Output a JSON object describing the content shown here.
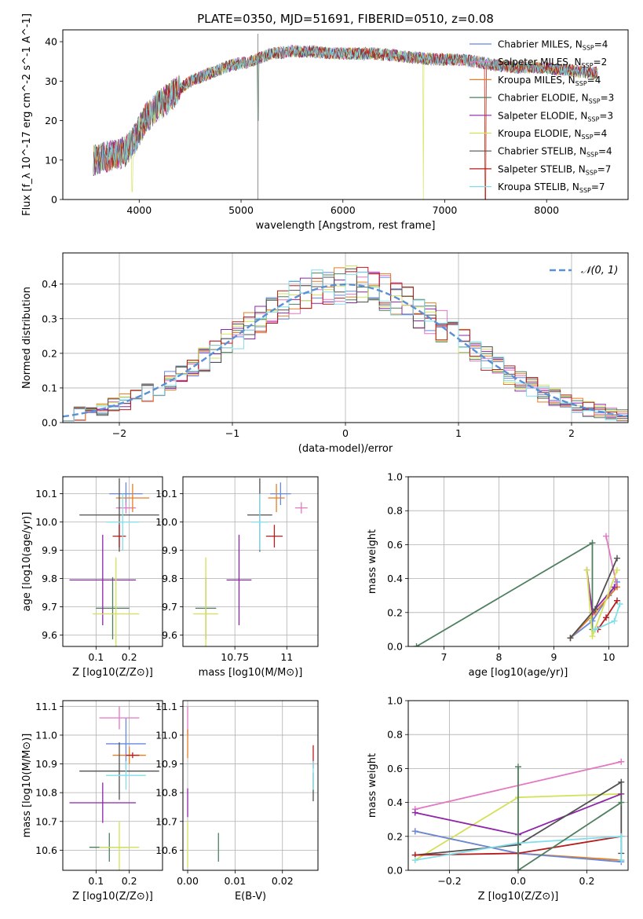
{
  "series_styles": [
    {
      "name": "Chabrier MILES",
      "nssp": "4",
      "color": "#6688dd"
    },
    {
      "name": "Salpeter MILES",
      "nssp": "2",
      "color": "#e377c2"
    },
    {
      "name": "Kroupa MILES",
      "nssp": "4",
      "color": "#e67e22"
    },
    {
      "name": "Chabrier ELODIE",
      "nssp": "3",
      "color": "#4f7f5f"
    },
    {
      "name": "Salpeter ELODIE",
      "nssp": "3",
      "color": "#8e24aa"
    },
    {
      "name": "Kroupa ELODIE",
      "nssp": "4",
      "color": "#d4e157"
    },
    {
      "name": "Chabrier STELIB",
      "nssp": "4",
      "color": "#505050"
    },
    {
      "name": "Salpeter STELIB",
      "nssp": "7",
      "color": "#b71c1c"
    },
    {
      "name": "Kroupa STELIB",
      "nssp": "7",
      "color": "#80deea"
    }
  ],
  "chart_data": [
    {
      "id": "spectrum",
      "type": "line",
      "title": "PLATE=0350, MJD=51691, FIBERID=0510, z=0.08",
      "xlabel": "wavelength [Angstrom, rest frame]",
      "ylabel": "Flux [f_λ 10^-17 erg cm^-2 s^-1 A^-1]",
      "xlim": [
        3250,
        8800
      ],
      "ylim": [
        0,
        43
      ],
      "xticks": [
        4000,
        5000,
        6000,
        7000,
        8000
      ],
      "yticks": [
        0,
        10,
        20,
        30,
        40
      ],
      "grid": false,
      "legend": "right",
      "continuum": [
        [
          3550,
          10
        ],
        [
          3700,
          11
        ],
        [
          3850,
          12
        ],
        [
          3950,
          15
        ],
        [
          4050,
          20
        ],
        [
          4150,
          23
        ],
        [
          4250,
          25
        ],
        [
          4350,
          27
        ],
        [
          4500,
          30
        ],
        [
          4700,
          32
        ],
        [
          4900,
          34
        ],
        [
          5100,
          35
        ],
        [
          5300,
          37
        ],
        [
          5500,
          37.5
        ],
        [
          5700,
          37.5
        ],
        [
          5900,
          37
        ],
        [
          6100,
          37
        ],
        [
          6300,
          37
        ],
        [
          6500,
          36.5
        ],
        [
          6700,
          36
        ],
        [
          6900,
          35.5
        ],
        [
          7100,
          35.5
        ],
        [
          7300,
          35
        ],
        [
          7500,
          34
        ],
        [
          7700,
          33.5
        ],
        [
          7900,
          33.5
        ],
        [
          8100,
          33
        ],
        [
          8300,
          32.5
        ],
        [
          8500,
          32
        ]
      ],
      "dips": [
        [
          3933,
          2
        ],
        [
          5165,
          20
        ],
        [
          5890,
          26
        ],
        [
          6790,
          0
        ],
        [
          7400,
          0
        ]
      ]
    },
    {
      "id": "residuals",
      "type": "step",
      "xlabel": "(data-model)/error",
      "ylabel": "Normed distribution",
      "xlim": [
        -2.5,
        2.5
      ],
      "ylim": [
        0,
        0.49
      ],
      "xticks": [
        -2,
        -1,
        0,
        1,
        2
      ],
      "yticks": [
        0,
        0.1,
        0.2,
        0.3,
        0.4
      ],
      "grid": true,
      "legend": "top-right",
      "reference_label": "𝒩(0, 1)"
    },
    {
      "id": "age_vs_Z",
      "type": "errorbar",
      "xlabel": "Z [log10(Z/Z⊙)]",
      "ylabel": "age  [log10(age/yr)]",
      "xlim": [
        0,
        0.3
      ],
      "ylim": [
        9.56,
        10.16
      ],
      "xticks": [
        0.1,
        0.2
      ],
      "yticks": [
        9.6,
        9.7,
        9.8,
        9.9,
        10.0,
        10.1
      ],
      "points": [
        {
          "s": 0,
          "x": 0.19,
          "xe": 0.05,
          "y": 10.1,
          "ye": 0.04
        },
        {
          "s": 1,
          "x": 0.19,
          "xe": 0.03,
          "y": 10.05,
          "ye": 0.02
        },
        {
          "s": 2,
          "x": 0.21,
          "xe": 0.05,
          "y": 10.085,
          "ye": 0.05
        },
        {
          "s": 3,
          "x": 0.15,
          "xe": 0.05,
          "y": 9.695,
          "ye": 0.11
        },
        {
          "s": 4,
          "x": 0.12,
          "xe": 0.1,
          "y": 9.795,
          "ye": 0.16
        },
        {
          "s": 5,
          "x": 0.16,
          "xe": 0.07,
          "y": 9.675,
          "ye": 0.2
        },
        {
          "s": 6,
          "x": 0.17,
          "xe": 0.12,
          "y": 10.025,
          "ye": 0.13
        },
        {
          "s": 7,
          "x": 0.17,
          "xe": 0.02,
          "y": 9.95,
          "ye": 0.04
        },
        {
          "s": 8,
          "x": 0.18,
          "xe": 0.05,
          "y": 10.0,
          "ye": 0.1
        }
      ]
    },
    {
      "id": "age_vs_mass",
      "type": "errorbar",
      "xlabel": "mass [log10(M/M⊙)]",
      "ylabel": "",
      "xlim": [
        10.5,
        11.15
      ],
      "ylim": [
        9.56,
        10.16
      ],
      "xticks": [
        10.75,
        11.0
      ],
      "yticks": [
        9.6,
        9.7,
        9.8,
        9.9,
        10.0,
        10.1
      ],
      "points": [
        {
          "s": 0,
          "x": 10.97,
          "xe": 0.05,
          "y": 10.1,
          "ye": 0.04
        },
        {
          "s": 1,
          "x": 11.07,
          "xe": 0.03,
          "y": 10.05,
          "ye": 0.02
        },
        {
          "s": 2,
          "x": 10.95,
          "xe": 0.04,
          "y": 10.085,
          "ye": 0.05
        },
        {
          "s": 3,
          "x": 10.61,
          "xe": 0.05,
          "y": 9.695,
          "ye": 0.11
        },
        {
          "s": 4,
          "x": 10.77,
          "xe": 0.06,
          "y": 9.795,
          "ye": 0.16
        },
        {
          "s": 5,
          "x": 10.61,
          "xe": 0.06,
          "y": 9.675,
          "ye": 0.2
        },
        {
          "s": 6,
          "x": 10.87,
          "xe": 0.06,
          "y": 10.025,
          "ye": 0.13
        },
        {
          "s": 7,
          "x": 10.94,
          "xe": 0.04,
          "y": 9.95,
          "ye": 0.04
        },
        {
          "s": 8,
          "x": 10.87,
          "xe": 0.04,
          "y": 10.0,
          "ye": 0.1
        }
      ]
    },
    {
      "id": "weight_vs_age",
      "type": "line",
      "xlabel": "age  [log10(age/yr)]",
      "ylabel": "mass weight",
      "xlim": [
        6.35,
        10.35
      ],
      "ylim": [
        0,
        1
      ],
      "xticks": [
        7,
        8,
        9,
        10
      ],
      "yticks": [
        0,
        0.2,
        0.4,
        0.6,
        0.8,
        1.0
      ],
      "grid": true,
      "lines": [
        {
          "s": 3,
          "pts": [
            [
              6.5,
              0
            ],
            [
              9.7,
              0.61
            ],
            [
              9.7,
              0.1
            ]
          ]
        },
        {
          "s": 0,
          "pts": [
            [
              9.3,
              0.05
            ],
            [
              9.7,
              0.15
            ],
            [
              10.0,
              0.3
            ],
            [
              10.15,
              0.38
            ]
          ]
        },
        {
          "s": 1,
          "pts": [
            [
              9.95,
              0.65
            ],
            [
              10.15,
              0.35
            ]
          ]
        },
        {
          "s": 2,
          "pts": [
            [
              9.3,
              0.05
            ],
            [
              9.75,
              0.2
            ],
            [
              10.15,
              0.35
            ]
          ]
        },
        {
          "s": 4,
          "pts": [
            [
              9.6,
              0.45
            ],
            [
              9.7,
              0.2
            ],
            [
              10.1,
              0.35
            ]
          ]
        },
        {
          "s": 5,
          "pts": [
            [
              9.6,
              0.45
            ],
            [
              9.7,
              0.06
            ],
            [
              10.15,
              0.45
            ]
          ]
        },
        {
          "s": 6,
          "pts": [
            [
              9.3,
              0.05
            ],
            [
              9.75,
              0.22
            ],
            [
              10.15,
              0.52
            ]
          ]
        },
        {
          "s": 7,
          "pts": [
            [
              9.8,
              0.1
            ],
            [
              9.95,
              0.17
            ],
            [
              10.15,
              0.27
            ]
          ]
        },
        {
          "s": 8,
          "pts": [
            [
              9.75,
              0.1
            ],
            [
              10.1,
              0.15
            ],
            [
              10.2,
              0.25
            ]
          ]
        }
      ]
    },
    {
      "id": "mass_vs_Z",
      "type": "errorbar",
      "xlabel": "Z [log10(Z/Z⊙)]",
      "ylabel": "mass [log10(M/M⊙)]",
      "xlim": [
        0,
        0.3
      ],
      "ylim": [
        10.53,
        11.12
      ],
      "xticks": [
        0.1,
        0.2
      ],
      "yticks": [
        10.6,
        10.7,
        10.8,
        10.9,
        11.0,
        11.1
      ],
      "points": [
        {
          "s": 0,
          "x": 0.19,
          "xe": 0.06,
          "y": 10.97,
          "ye": 0.09
        },
        {
          "s": 1,
          "x": 0.17,
          "xe": 0.06,
          "y": 11.06,
          "ye": 0.04
        },
        {
          "s": 2,
          "x": 0.2,
          "xe": 0.05,
          "y": 10.93,
          "ye": 0.03
        },
        {
          "s": 3,
          "x": 0.14,
          "xe": 0.06,
          "y": 10.61,
          "ye": 0.05
        },
        {
          "s": 4,
          "x": 0.12,
          "xe": 0.1,
          "y": 10.765,
          "ye": 0.07
        },
        {
          "s": 5,
          "x": 0.17,
          "xe": 0.06,
          "y": 10.61,
          "ye": 0.09
        },
        {
          "s": 6,
          "x": 0.17,
          "xe": 0.12,
          "y": 10.875,
          "ye": 0.1
        },
        {
          "s": 7,
          "x": 0.21,
          "xe": 0.02,
          "y": 10.93,
          "ye": 0.01
        },
        {
          "s": 8,
          "x": 0.19,
          "xe": 0.06,
          "y": 10.86,
          "ye": 0.05
        }
      ]
    },
    {
      "id": "mass_vs_ebv",
      "type": "errorbar",
      "xlabel": "E(B-V)",
      "ylabel": "",
      "xlim": [
        -0.001,
        0.0275
      ],
      "ylim": [
        10.53,
        11.12
      ],
      "xticks": [
        0.0,
        0.01,
        0.02
      ],
      "yticks": [
        10.6,
        10.7,
        10.8,
        10.9,
        11.0,
        11.1
      ],
      "points": [
        {
          "s": 1,
          "x": 0.0,
          "xe": 0,
          "y": 11.05,
          "ye": 0.05
        },
        {
          "s": 2,
          "x": 0.0,
          "xe": 0,
          "y": 10.97,
          "ye": 0.05
        },
        {
          "s": 4,
          "x": 0.0,
          "xe": 0,
          "y": 10.765,
          "ye": 0.05
        },
        {
          "s": 5,
          "x": 0.0,
          "xe": 0,
          "y": 10.62,
          "ye": 0.08
        },
        {
          "s": 3,
          "x": 0.0065,
          "xe": 0,
          "y": 10.61,
          "ye": 0.05
        },
        {
          "s": 7,
          "x": 0.0265,
          "xe": 0,
          "y": 10.925,
          "ye": 0.04
        },
        {
          "s": 6,
          "x": 0.0265,
          "xe": 0,
          "y": 10.82,
          "ye": 0.05
        },
        {
          "s": 8,
          "x": 0.0265,
          "xe": 0,
          "y": 10.86,
          "ye": 0.05
        }
      ]
    },
    {
      "id": "weight_vs_Z",
      "type": "line",
      "xlabel": "Z [log10(Z/Z⊙)]",
      "ylabel": "mass weight",
      "xlim": [
        -0.32,
        0.32
      ],
      "ylim": [
        0,
        1
      ],
      "xticks": [
        -0.2,
        0.0,
        0.2
      ],
      "yticks": [
        0,
        0.2,
        0.4,
        0.6,
        0.8,
        1.0
      ],
      "grid": true,
      "lines": [
        {
          "s": 1,
          "pts": [
            [
              -0.3,
              0.36
            ],
            [
              0.3,
              0.64
            ]
          ]
        },
        {
          "s": 5,
          "pts": [
            [
              -0.3,
              0.06
            ],
            [
              0.0,
              0.43
            ],
            [
              0.3,
              0.45
            ]
          ]
        },
        {
          "s": 4,
          "pts": [
            [
              -0.3,
              0.34
            ],
            [
              0.0,
              0.21
            ],
            [
              0.3,
              0.45
            ]
          ]
        },
        {
          "s": 2,
          "pts": [
            [
              -0.3,
              0.23
            ],
            [
              0.0,
              0.1
            ],
            [
              0.3,
              0.06
            ]
          ]
        },
        {
          "s": 0,
          "pts": [
            [
              -0.3,
              0.23
            ],
            [
              0.0,
              0.1
            ],
            [
              0.3,
              0.05
            ]
          ]
        },
        {
          "s": 6,
          "pts": [
            [
              -0.3,
              0.09
            ],
            [
              0.0,
              0.15
            ],
            [
              0.3,
              0.52
            ],
            [
              0.3,
              0.1
            ]
          ]
        },
        {
          "s": 7,
          "pts": [
            [
              -0.3,
              0.09
            ],
            [
              0.0,
              0.1
            ],
            [
              0.3,
              0.2
            ]
          ]
        },
        {
          "s": 8,
          "pts": [
            [
              -0.3,
              0.06
            ],
            [
              0.0,
              0.16
            ],
            [
              0.3,
              0.2
            ],
            [
              0.3,
              0.06
            ]
          ]
        },
        {
          "s": 3,
          "pts": [
            [
              0.0,
              0.61
            ],
            [
              0.0,
              0.0
            ],
            [
              0.3,
              0.4
            ]
          ]
        }
      ]
    }
  ]
}
